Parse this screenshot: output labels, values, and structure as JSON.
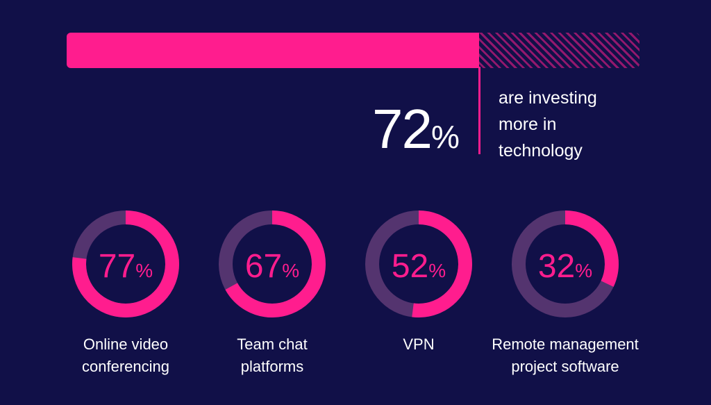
{
  "colors": {
    "background": "#111048",
    "accent": "#ff1d8e",
    "track": "#54346f",
    "text": "#ffffff"
  },
  "headline": {
    "value": 72,
    "number": "72",
    "unit": "%",
    "caption": "are investing\nmore in\ntechnology"
  },
  "chart_data": [
    {
      "type": "bar",
      "values": [
        72
      ],
      "ylim": [
        0,
        100
      ],
      "annotations": [
        "72%",
        "are investing more in technology"
      ]
    },
    {
      "type": "pie",
      "categories": [
        "Online video conferencing",
        "Team chat platforms",
        "VPN",
        "Remote management project software"
      ],
      "values": [
        77,
        67,
        52,
        32
      ],
      "ylim": [
        0,
        100
      ]
    }
  ],
  "donuts": [
    {
      "number": "77",
      "unit": "%",
      "label": "Online video\nconferencing",
      "value": 77
    },
    {
      "number": "67",
      "unit": "%",
      "label": "Team chat\nplatforms",
      "value": 67
    },
    {
      "number": "52",
      "unit": "%",
      "label": "VPN",
      "value": 52
    },
    {
      "number": "32",
      "unit": "%",
      "label": "Remote management\nproject software",
      "value": 32
    }
  ]
}
